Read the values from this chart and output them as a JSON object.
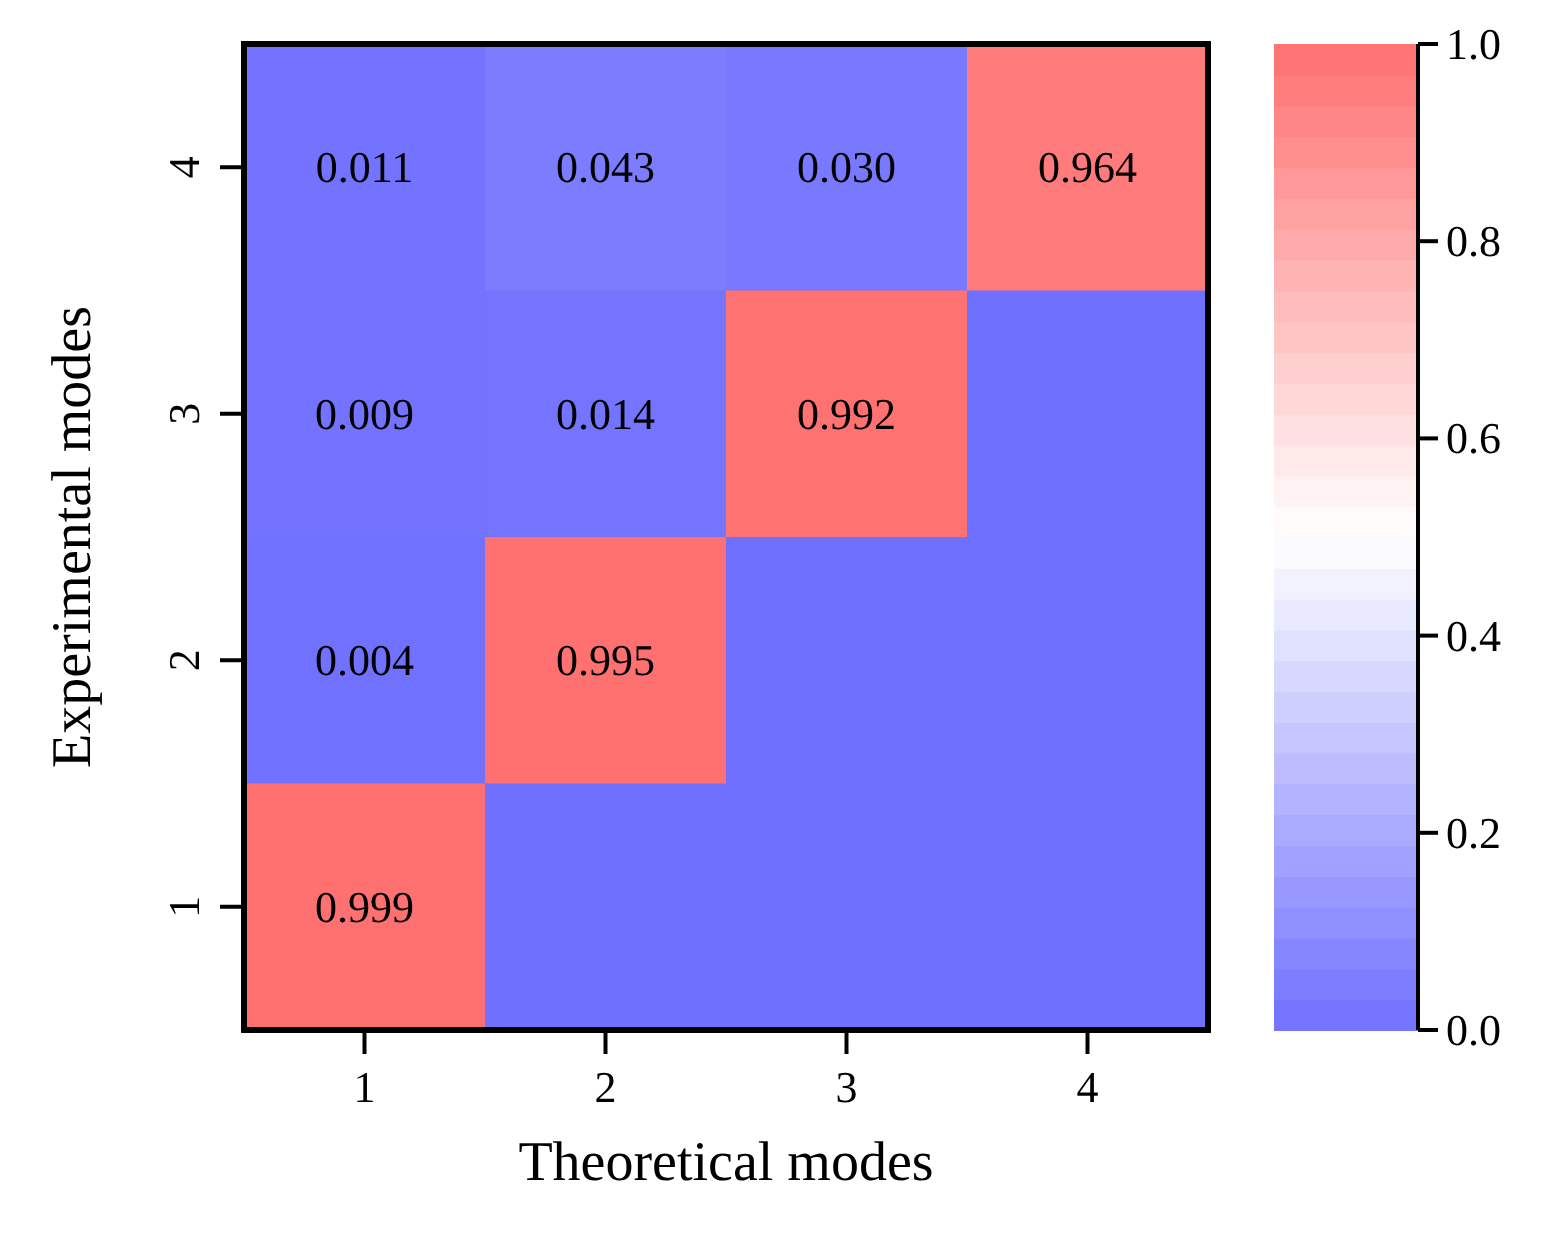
{
  "chart_data": {
    "type": "heatmap",
    "xlabel": "Theoretical modes",
    "ylabel": "Experimental modes",
    "categories": [
      "1",
      "2",
      "3",
      "4"
    ],
    "y_categories": [
      "4",
      "3",
      "2",
      "1"
    ],
    "cells": [
      [
        0.011,
        0.043,
        0.03,
        0.964
      ],
      [
        0.009,
        0.014,
        0.992,
        0
      ],
      [
        0.004,
        0.995,
        0,
        0
      ],
      [
        0.999,
        0,
        0,
        0
      ]
    ],
    "cell_labels": [
      [
        "0.011",
        "0.043",
        "0.030",
        "0.964"
      ],
      [
        "0.009",
        "0.014",
        "0.992",
        null
      ],
      [
        "0.004",
        "0.995",
        null,
        null
      ],
      [
        "0.999",
        null,
        null,
        null
      ]
    ],
    "clim": [
      0,
      1
    ],
    "cticks": [
      {
        "value": 0,
        "label": "0.0"
      },
      {
        "value": 0.2,
        "label": "0.2"
      },
      {
        "value": 0.4,
        "label": "0.4"
      },
      {
        "value": 0.6,
        "label": "0.6"
      },
      {
        "value": 0.8,
        "label": "0.8"
      },
      {
        "value": 1,
        "label": "1.0"
      }
    ]
  }
}
